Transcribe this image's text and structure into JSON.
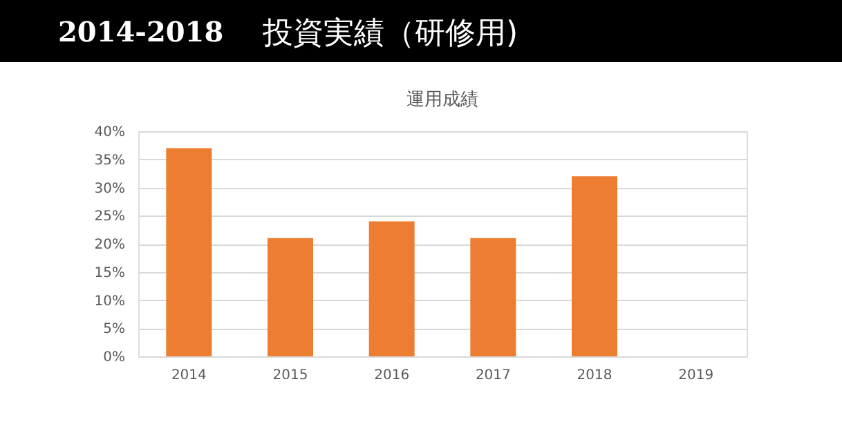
{
  "chart_data": {
    "type": "bar",
    "title": "運用成績",
    "annotations": [
      "2014-2018",
      "投資実績（研修用)"
    ],
    "categories": [
      "2014",
      "2015",
      "2016",
      "2017",
      "2018",
      "2019"
    ],
    "values": [
      37,
      21,
      24,
      21,
      32,
      null
    ],
    "color": "#ed7d31",
    "ylim": [
      0,
      40
    ],
    "yticks": [
      {
        "value": 0,
        "label": "0%"
      },
      {
        "value": 5,
        "label": "5%"
      },
      {
        "value": 10,
        "label": "10%"
      },
      {
        "value": 15,
        "label": "15%"
      },
      {
        "value": 20,
        "label": "20%"
      },
      {
        "value": 25,
        "label": "25%"
      },
      {
        "value": 30,
        "label": "30%"
      },
      {
        "value": 35,
        "label": "35%"
      },
      {
        "value": 40,
        "label": "40%"
      }
    ],
    "grid": "y"
  }
}
